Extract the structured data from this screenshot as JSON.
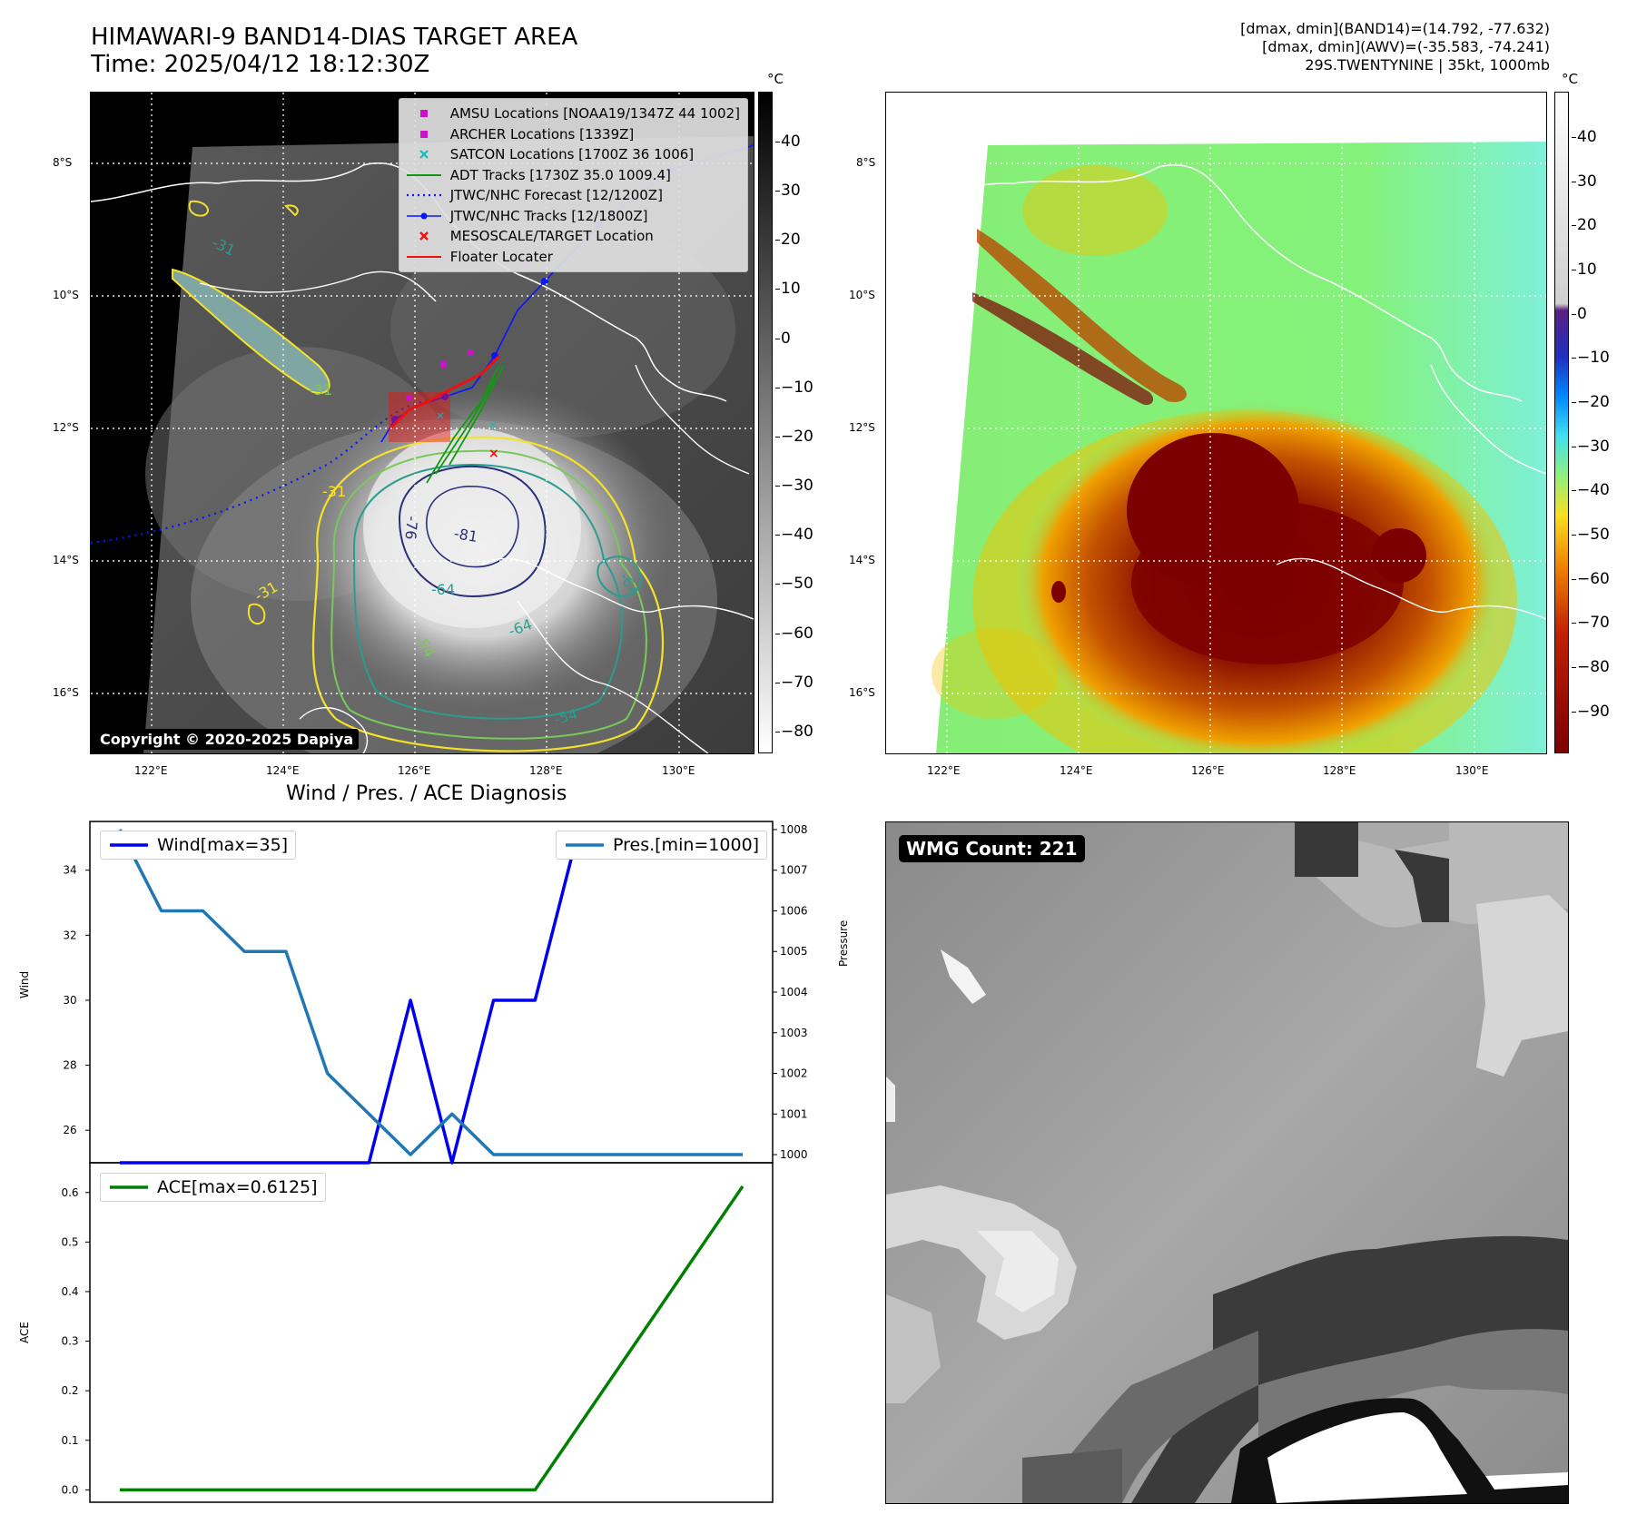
{
  "header": {
    "title_line1": "HIMAWARI-9 BAND14-DIAS TARGET AREA",
    "title_line2": "Time: 2025/04/12 18:12:30Z",
    "info_line1": "[dmax, dmin](BAND14)=(14.792, -77.632)",
    "info_line2": "[dmax, dmin](AWV)=(-35.583, -74.241)",
    "info_line3": "29S.TWENTYNINE | 35kt, 1000mb"
  },
  "colors": {
    "ir_background": "#4a4a4a",
    "storm_core": "#e8e8e8",
    "contour_yellow": "#f5e12a",
    "contour_green": "#79c95a",
    "contour_teal": "#2a9d8f",
    "contour_navy": "#2b2f7a",
    "jtwc_blue": "#0a14ff",
    "adt_green": "#119911",
    "marker_magenta": "#cc11cc",
    "satcon_cyan": "#11bbbb",
    "target_red": "#ee1111",
    "awv_green": "#84f27a",
    "awv_darkred": "#7d0000",
    "awv_orange": "#e06d00",
    "wind_color": "#0000ee",
    "pres_color": "#1f77b4",
    "ace_color": "#008000"
  },
  "ir_map": {
    "unit_label": "°C",
    "lat_labels": [
      "8°S",
      "10°S",
      "12°S",
      "14°S",
      "16°S"
    ],
    "lon_labels": [
      "122°E",
      "124°E",
      "126°E",
      "128°E",
      "130°E"
    ],
    "colorbar_ticks": [
      "40",
      "30",
      "20",
      "10",
      "0",
      "−10",
      "−20",
      "−30",
      "−40",
      "−50",
      "−60",
      "−70",
      "−80"
    ],
    "copyright": "Copyright © 2020-2025 Dapiya",
    "contour_labels": [
      "-31",
      "-76",
      "-81",
      "-64",
      "-64",
      "-54",
      "-54",
      "-64",
      "-31",
      "-31",
      "-31"
    ],
    "legend": [
      {
        "label": "AMSU Locations [NOAA19/1347Z 44 1002]",
        "symbol": "square",
        "color": "#cc11cc"
      },
      {
        "label": "ARCHER Locations [1339Z]",
        "symbol": "square",
        "color": "#cc11cc"
      },
      {
        "label": "SATCON Locations [1700Z 36 1006]",
        "symbol": "x",
        "color": "#11bbbb"
      },
      {
        "label": "ADT Tracks [1730Z 35.0 1009.4]",
        "symbol": "line",
        "color": "#119911"
      },
      {
        "label": "JTWC/NHC Forecast [12/1200Z]",
        "symbol": "dotted",
        "color": "#0a14ff"
      },
      {
        "label": "JTWC/NHC Tracks [12/1800Z]",
        "symbol": "dotline",
        "color": "#0a14ff"
      },
      {
        "label": "MESOSCALE/TARGET Location",
        "symbol": "x",
        "color": "#ee1111"
      },
      {
        "label": "Floater Locater",
        "symbol": "line",
        "color": "#ee1111"
      }
    ]
  },
  "awv_map": {
    "unit_label": "°C",
    "lat_labels": [
      "8°S",
      "10°S",
      "12°S",
      "14°S",
      "16°S"
    ],
    "lon_labels": [
      "122°E",
      "124°E",
      "126°E",
      "128°E",
      "130°E"
    ],
    "colorbar_ticks": [
      "40",
      "30",
      "20",
      "10",
      "0",
      "−10",
      "−20",
      "−30",
      "−40",
      "−50",
      "−60",
      "−70",
      "−80",
      "−90"
    ]
  },
  "diag": {
    "title": "Wind / Pres. / ACE Diagnosis",
    "wind_axis_label": "Wind",
    "pres_axis_label": "Pressure",
    "ace_axis_label": "ACE",
    "wind_legend": "Wind[max=35]",
    "pres_legend": "Pres.[min=1000]",
    "ace_legend": "ACE[max=0.6125]"
  },
  "wmg": {
    "count_label": "WMG Count: 221"
  },
  "chart_data": [
    {
      "type": "line",
      "title": "Wind / Pres. / ACE Diagnosis",
      "ylabel": "Wind",
      "y2label": "Pressure",
      "x": [
        0,
        1,
        2,
        3,
        4,
        5,
        6,
        7,
        8,
        9,
        10,
        11,
        12,
        13,
        14,
        15
      ],
      "ylim": [
        25,
        35.5
      ],
      "y2lim": [
        999.8,
        1008.2
      ],
      "y_ticks": [
        26,
        28,
        30,
        32,
        34
      ],
      "y2_ticks": [
        1000,
        1001,
        1002,
        1003,
        1004,
        1005,
        1006,
        1007,
        1008
      ],
      "series": [
        {
          "name": "Wind[max=35]",
          "axis": "left",
          "color": "#0000ee",
          "values": [
            25,
            25,
            25,
            25,
            25,
            25,
            25,
            30,
            25,
            30,
            30,
            35,
            35,
            35,
            35,
            35
          ]
        },
        {
          "name": "Pres.[min=1000]",
          "axis": "right",
          "color": "#1f77b4",
          "values": [
            1008,
            1006,
            1006,
            1005,
            1005,
            1002,
            1001,
            1000,
            1001,
            1000,
            1000,
            1000,
            1000,
            1000,
            1000,
            1000
          ]
        }
      ]
    },
    {
      "type": "line",
      "ylabel": "ACE",
      "x": [
        0,
        1,
        2,
        3,
        4,
        5,
        6,
        7,
        8,
        9,
        10,
        11,
        12,
        13,
        14,
        15
      ],
      "ylim": [
        -0.025,
        0.66
      ],
      "y_ticks": [
        "0.0",
        "0.1",
        "0.2",
        "0.3",
        "0.4",
        "0.5",
        "0.6"
      ],
      "series": [
        {
          "name": "ACE[max=0.6125]",
          "color": "#008000",
          "values": [
            0,
            0,
            0,
            0,
            0,
            0,
            0,
            0,
            0,
            0,
            0,
            0.1225,
            0.245,
            0.3675,
            0.49,
            0.6125
          ]
        }
      ]
    }
  ]
}
